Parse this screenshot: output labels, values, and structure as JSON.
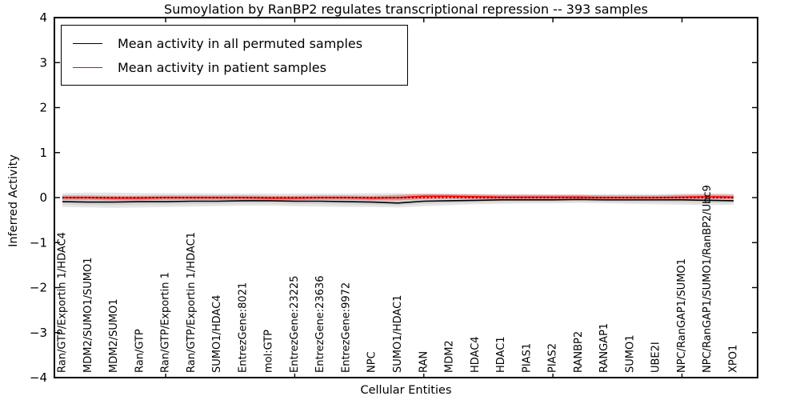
{
  "title": "Sumoylation by RanBP2 regulates transcriptional repression -- 393 samples",
  "legend": {
    "items": [
      {
        "label": "Mean activity in all permuted samples",
        "color": "#000000"
      },
      {
        "label": "Mean activity in patient samples",
        "color": "#ff0000"
      }
    ]
  },
  "chart_data": {
    "type": "line",
    "title": "Sumoylation by RanBP2 regulates transcriptional repression -- 393 samples",
    "xlabel": "Cellular Entities",
    "ylabel": "Inferred Activity",
    "ylim": [
      -4,
      4
    ],
    "grid": false,
    "legend_position": "upper left",
    "yticks": [
      {
        "v": 4,
        "label": "4"
      },
      {
        "v": 3,
        "label": "3"
      },
      {
        "v": 2,
        "label": "2"
      },
      {
        "v": 1,
        "label": "1"
      },
      {
        "v": 0,
        "label": "0"
      },
      {
        "v": -1,
        "label": "−1"
      },
      {
        "v": -2,
        "label": "−2"
      },
      {
        "v": -3,
        "label": "−3"
      },
      {
        "v": -4,
        "label": "−4"
      }
    ],
    "categories": [
      "Ran/GTP/Exportin 1/HDAC4",
      "MDM2/SUMO1/SUMO1",
      "MDM2/SUMO1",
      "Ran/GTP",
      "Ran/GTP/Exportin 1",
      "Ran/GTP/Exportin 1/HDAC1",
      "SUMO1/HDAC4",
      "EntrezGene:8021",
      "mol:GTP",
      "EntrezGene:23225",
      "EntrezGene:23636",
      "EntrezGene:9972",
      "NPC",
      "SUMO1/HDAC1",
      "RAN",
      "MDM2",
      "HDAC4",
      "HDAC1",
      "PIAS1",
      "PIAS2",
      "RANBP2",
      "RANGAP1",
      "SUMO1",
      "UBE2I",
      "NPC/RanGAP1/SUMO1",
      "NPC/RanGAP1/SUMO1/RanBP2/Ubc9",
      "XPO1"
    ],
    "series": [
      {
        "name": "Mean activity in all permuted samples",
        "color": "#000000",
        "band_color": "#000000",
        "band_opacity": 0.1,
        "values": [
          -0.09,
          -0.1,
          -0.1,
          -0.09,
          -0.09,
          -0.08,
          -0.08,
          -0.07,
          -0.07,
          -0.08,
          -0.08,
          -0.09,
          -0.1,
          -0.12,
          -0.08,
          -0.07,
          -0.06,
          -0.05,
          -0.05,
          -0.05,
          -0.04,
          -0.05,
          -0.05,
          -0.05,
          -0.05,
          -0.06,
          -0.07
        ],
        "band_upper": [
          0.1,
          0.11,
          0.11,
          0.1,
          0.1,
          0.1,
          0.09,
          0.09,
          0.09,
          0.09,
          0.09,
          0.09,
          0.1,
          0.1,
          0.09,
          0.08,
          0.08,
          0.08,
          0.08,
          0.07,
          0.07,
          0.08,
          0.08,
          0.08,
          0.09,
          0.1,
          0.09
        ],
        "band_lower": [
          -0.21,
          -0.22,
          -0.23,
          -0.22,
          -0.21,
          -0.2,
          -0.19,
          -0.18,
          -0.18,
          -0.19,
          -0.2,
          -0.21,
          -0.21,
          -0.22,
          -0.19,
          -0.17,
          -0.15,
          -0.14,
          -0.13,
          -0.13,
          -0.12,
          -0.13,
          -0.14,
          -0.15,
          -0.16,
          -0.17,
          -0.16
        ]
      },
      {
        "name": "Mean activity in patient samples",
        "color": "#ff0000",
        "band_color": "#ff0000",
        "band_opacity": 0.35,
        "values": [
          0.0,
          0.0,
          -0.01,
          -0.01,
          0.0,
          0.0,
          0.0,
          0.0,
          -0.01,
          -0.01,
          0.0,
          0.0,
          -0.01,
          0.0,
          0.03,
          0.03,
          0.02,
          0.01,
          0.01,
          0.01,
          0.01,
          0.0,
          0.0,
          0.0,
          0.01,
          0.02,
          0.01
        ],
        "band_upper": [
          0.05,
          0.05,
          0.04,
          0.04,
          0.05,
          0.05,
          0.05,
          0.05,
          0.04,
          0.04,
          0.05,
          0.05,
          0.04,
          0.06,
          0.08,
          0.08,
          0.07,
          0.06,
          0.06,
          0.06,
          0.06,
          0.05,
          0.05,
          0.05,
          0.06,
          0.07,
          0.06
        ],
        "band_lower": [
          -0.05,
          -0.05,
          -0.06,
          -0.06,
          -0.05,
          -0.05,
          -0.05,
          -0.05,
          -0.06,
          -0.06,
          -0.05,
          -0.05,
          -0.06,
          -0.06,
          -0.03,
          -0.02,
          -0.03,
          -0.04,
          -0.04,
          -0.04,
          -0.04,
          -0.05,
          -0.05,
          -0.05,
          -0.04,
          -0.03,
          -0.04
        ]
      }
    ],
    "zero_line": {
      "value": 0,
      "style": "dotted",
      "color": "#000000"
    }
  }
}
